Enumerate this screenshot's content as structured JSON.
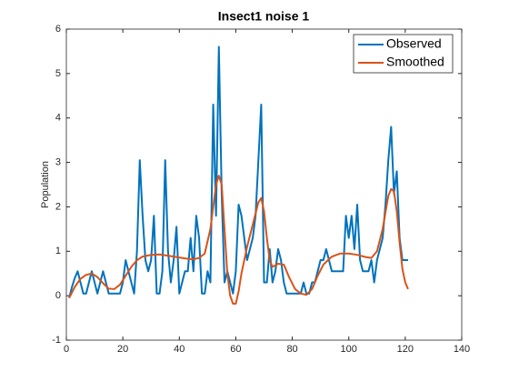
{
  "chart_data": {
    "type": "line",
    "title": "Insect1 noise 1",
    "ylabel": "Population",
    "xlim": [
      0,
      140
    ],
    "xticks": [
      0,
      20,
      40,
      60,
      80,
      100,
      120,
      140
    ],
    "ylim": [
      -1,
      6
    ],
    "yticks": [
      -1,
      0,
      1,
      2,
      3,
      4,
      5,
      6
    ],
    "grid": false,
    "legend": "top-right",
    "series": [
      {
        "name": "Observed",
        "color": "#0072BD",
        "x": [
          1,
          2,
          3,
          4,
          5,
          6,
          7,
          8,
          9,
          10,
          11,
          12,
          13,
          14,
          15,
          16,
          17,
          18,
          19,
          20,
          21,
          22,
          23,
          24,
          25,
          26,
          27,
          28,
          29,
          30,
          31,
          32,
          33,
          34,
          35,
          36,
          37,
          38,
          39,
          40,
          41,
          42,
          43,
          44,
          45,
          46,
          47,
          48,
          49,
          50,
          51,
          52,
          53,
          54,
          55,
          56,
          57,
          58,
          59,
          60,
          61,
          62,
          63,
          64,
          65,
          66,
          67,
          68,
          69,
          70,
          71,
          72,
          73,
          74,
          75,
          76,
          77,
          78,
          79,
          80,
          81,
          82,
          83,
          84,
          85,
          86,
          87,
          88,
          89,
          90,
          91,
          92,
          93,
          94,
          95,
          96,
          97,
          98,
          99,
          100,
          101,
          102,
          103,
          104,
          105,
          106,
          107,
          108,
          109,
          110,
          111,
          112,
          113,
          114,
          115,
          116,
          117,
          118,
          119,
          120,
          121
        ],
        "values": [
          -0.05,
          0.2,
          0.4,
          0.55,
          0.3,
          0.05,
          0.05,
          0.3,
          0.55,
          0.3,
          0.05,
          0.3,
          0.55,
          0.3,
          0.05,
          0.05,
          0.05,
          0.05,
          0.05,
          0.3,
          0.8,
          0.55,
          0.3,
          0.05,
          1.0,
          3.05,
          1.8,
          0.8,
          0.55,
          0.8,
          1.8,
          0.05,
          0.05,
          0.55,
          3.05,
          1.0,
          0.3,
          0.8,
          1.55,
          0.05,
          0.3,
          0.55,
          0.55,
          1.3,
          0.55,
          1.8,
          1.3,
          0.05,
          0.05,
          0.55,
          0.3,
          4.3,
          1.8,
          5.6,
          2.3,
          0.3,
          0.55,
          0.3,
          0.05,
          0.55,
          2.05,
          1.8,
          1.3,
          0.8,
          1.05,
          1.3,
          1.8,
          3.05,
          4.3,
          0.3,
          0.3,
          1.05,
          0.3,
          0.55,
          1.05,
          0.8,
          0.3,
          0.05,
          0.05,
          0.05,
          0.05,
          0.05,
          0.05,
          0.3,
          0.05,
          0.05,
          0.3,
          0.3,
          0.55,
          0.8,
          0.8,
          1.05,
          0.8,
          0.55,
          0.55,
          0.55,
          0.55,
          0.55,
          1.8,
          1.3,
          1.8,
          1.05,
          2.05,
          0.8,
          0.55,
          0.55,
          0.55,
          0.8,
          0.3,
          0.8,
          1.05,
          1.3,
          2.05,
          3.05,
          3.8,
          2.3,
          2.8,
          1.3,
          0.8,
          0.8,
          0.8
        ]
      },
      {
        "name": "Smoothed",
        "color": "#D95319",
        "x": [
          1,
          3,
          5,
          7,
          9,
          11,
          13,
          15,
          17,
          19,
          21,
          23,
          25,
          27,
          30,
          33,
          36,
          39,
          42,
          45,
          47,
          49,
          51,
          53,
          54,
          55,
          56,
          57,
          58,
          59,
          60,
          61,
          62,
          64,
          66,
          68,
          69,
          70,
          71,
          72,
          73,
          75,
          77,
          79,
          81,
          83,
          85,
          87,
          89,
          91,
          94,
          97,
          100,
          103,
          106,
          108,
          110,
          112,
          114,
          115,
          116,
          117,
          118,
          119,
          120,
          121
        ],
        "values": [
          -0.05,
          0.2,
          0.38,
          0.47,
          0.5,
          0.42,
          0.28,
          0.16,
          0.15,
          0.25,
          0.45,
          0.65,
          0.8,
          0.88,
          0.92,
          0.93,
          0.9,
          0.87,
          0.84,
          0.82,
          0.85,
          0.95,
          1.5,
          2.5,
          2.7,
          2.5,
          1.5,
          0.5,
          0.0,
          -0.18,
          -0.18,
          0.1,
          0.5,
          1.1,
          1.6,
          2.1,
          2.2,
          1.9,
          1.3,
          0.8,
          0.65,
          0.72,
          0.7,
          0.4,
          0.15,
          0.05,
          0.02,
          0.15,
          0.45,
          0.7,
          0.88,
          0.95,
          0.95,
          0.92,
          0.87,
          0.85,
          1.0,
          1.5,
          2.25,
          2.4,
          2.35,
          1.9,
          1.2,
          0.6,
          0.3,
          0.15
        ]
      }
    ]
  }
}
